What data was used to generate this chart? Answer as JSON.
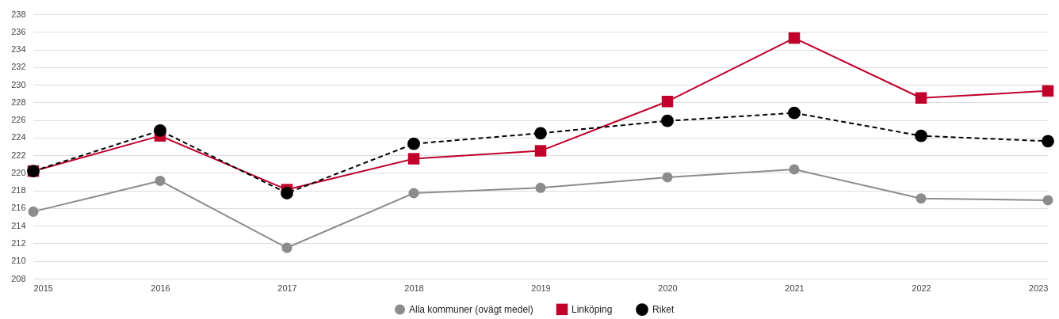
{
  "chart_data": {
    "type": "line",
    "x": [
      2015,
      2016,
      2017,
      2018,
      2019,
      2020,
      2021,
      2022,
      2023
    ],
    "series": [
      {
        "name": "Alla kommuner (ovägt medel)",
        "color": "#8c8c8c",
        "marker": "circle",
        "line_style": "solid",
        "values": [
          215.6,
          219.1,
          211.5,
          217.7,
          218.3,
          219.5,
          220.4,
          217.1,
          216.9
        ]
      },
      {
        "name": "Linköping",
        "color": "#c0002a",
        "marker": "square",
        "line_style": "solid",
        "values": [
          220.2,
          224.2,
          218.1,
          221.6,
          222.5,
          228.1,
          235.3,
          228.5,
          229.3
        ]
      },
      {
        "name": "Riket",
        "color": "#000000",
        "marker": "circle",
        "line_style": "dashed",
        "values": [
          220.2,
          224.8,
          217.7,
          223.3,
          224.5,
          225.9,
          226.8,
          224.2,
          223.6
        ]
      }
    ],
    "xlim": [
      2015,
      2023
    ],
    "xticks": [
      2015,
      2016,
      2017,
      2018,
      2019,
      2020,
      2021,
      2022,
      2023
    ],
    "ylim": [
      208,
      238
    ],
    "yticks": [
      208,
      210,
      212,
      214,
      216,
      218,
      220,
      222,
      224,
      226,
      228,
      230,
      232,
      234,
      236,
      238
    ],
    "grid": "y",
    "legend": "bottom"
  }
}
